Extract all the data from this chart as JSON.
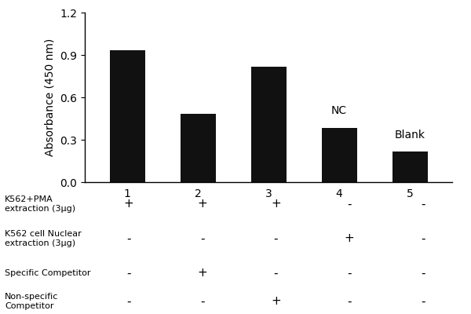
{
  "categories": [
    "1",
    "2",
    "3",
    "4",
    "5"
  ],
  "values": [
    0.935,
    0.485,
    0.815,
    0.385,
    0.215
  ],
  "bar_color": "#111111",
  "ylabel": "Absorbance (450 nm)",
  "ylim": [
    0.0,
    1.2
  ],
  "yticks": [
    0.0,
    0.3,
    0.6,
    0.9,
    1.2
  ],
  "bar_annotations": [
    "",
    "",
    "",
    "NC",
    "Blank"
  ],
  "table_row_labels": [
    "K562+PMA\nextraction (3μg)",
    "K562 cell Nuclear\nextraction (3μg)",
    "Specific Competitor",
    "Non-specific\nCompetitor"
  ],
  "table_data": [
    [
      "+",
      "+",
      "+",
      "-",
      "-"
    ],
    [
      "-",
      "-",
      "-",
      "+",
      "-"
    ],
    [
      "-",
      "+",
      "-",
      "-",
      "-"
    ],
    [
      "-",
      "-",
      "+",
      "-",
      "-"
    ]
  ],
  "background_color": "#ffffff",
  "fig_width": 6.0,
  "fig_height": 4.0
}
